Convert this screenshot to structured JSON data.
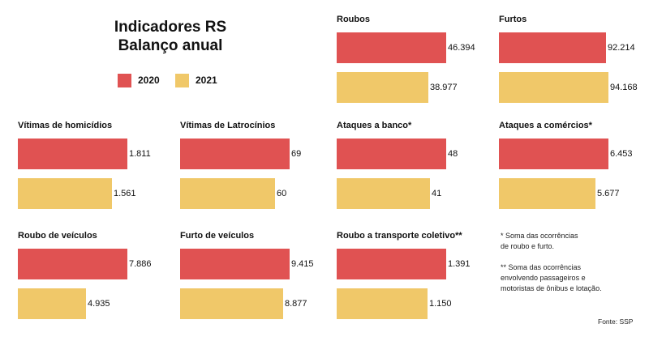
{
  "header": {
    "title_line1": "Indicadores RS",
    "title_line2": "Balanço anual"
  },
  "legend": [
    {
      "label": "2020",
      "color": "#e05252"
    },
    {
      "label": "2021",
      "color": "#f0c869"
    }
  ],
  "colors": {
    "series_2020": "#e05252",
    "series_2021": "#f0c869"
  },
  "chart_data": [
    {
      "type": "bar",
      "title": "Roubos",
      "categories": [
        "2020",
        "2021"
      ],
      "values": [
        46394,
        38977
      ],
      "value_labels": [
        "46.394",
        "38.977"
      ]
    },
    {
      "type": "bar",
      "title": "Furtos",
      "categories": [
        "2020",
        "2021"
      ],
      "values": [
        92214,
        94168
      ],
      "value_labels": [
        "92.214",
        "94.168"
      ]
    },
    {
      "type": "bar",
      "title": "Vítimas de homicídios",
      "categories": [
        "2020",
        "2021"
      ],
      "values": [
        1811,
        1561
      ],
      "value_labels": [
        "1.811",
        "1.561"
      ]
    },
    {
      "type": "bar",
      "title": "Vítimas de Latrocínios",
      "categories": [
        "2020",
        "2021"
      ],
      "values": [
        69,
        60
      ],
      "value_labels": [
        "69",
        "60"
      ]
    },
    {
      "type": "bar",
      "title": "Ataques a banco*",
      "categories": [
        "2020",
        "2021"
      ],
      "values": [
        48,
        41
      ],
      "value_labels": [
        "48",
        "41"
      ]
    },
    {
      "type": "bar",
      "title": "Ataques a comércios*",
      "categories": [
        "2020",
        "2021"
      ],
      "values": [
        6453,
        5677
      ],
      "value_labels": [
        "6.453",
        "5.677"
      ]
    },
    {
      "type": "bar",
      "title": "Roubo de veículos",
      "categories": [
        "2020",
        "2021"
      ],
      "values": [
        7886,
        4935
      ],
      "value_labels": [
        "7.886",
        "4.935"
      ]
    },
    {
      "type": "bar",
      "title": "Furto de veículos",
      "categories": [
        "2020",
        "2021"
      ],
      "values": [
        9415,
        8877
      ],
      "value_labels": [
        "9.415",
        "8.877"
      ]
    },
    {
      "type": "bar",
      "title": "Roubo a transporte coletivo**",
      "categories": [
        "2020",
        "2021"
      ],
      "values": [
        1391,
        1150
      ],
      "value_labels": [
        "1.391",
        "1.150"
      ]
    }
  ],
  "notes": {
    "note1_line1": "* Soma das ocorrências",
    "note1_line2": "de roubo e furto.",
    "note2_line1": "** Soma das ocorrências",
    "note2_line2": "envolvendo passageiros e",
    "note2_line3": "motoristas de ônibus e lotação."
  },
  "source": "Fonte: SSP"
}
